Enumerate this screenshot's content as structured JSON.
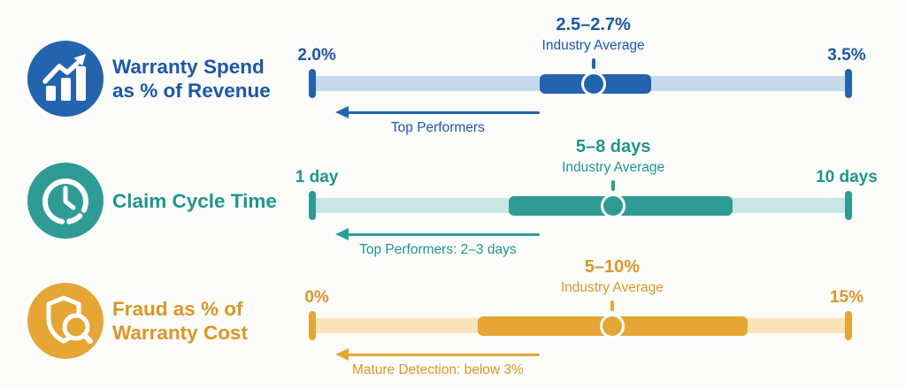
{
  "page": {
    "background": "#FCFCFA"
  },
  "rows": [
    {
      "id": "warranty-spend",
      "title_line1": "Warranty Spend",
      "title_line2": "as % of Revenue",
      "icon": "bar-chart-trend-icon",
      "min_label": "2.0%",
      "max_label": "3.5%",
      "avg_value": "2.5–2.7%",
      "avg_caption": "Industry Average",
      "note": "Top Performers",
      "colors": {
        "dark": "#2463AE",
        "light": "#C8D9EC",
        "text": "#1C57A8"
      },
      "geometry": {
        "seg_start_pct": 42.4,
        "seg_end_pct": 63.2,
        "marker_pct": 52.4
      }
    },
    {
      "id": "claim-cycle-time",
      "title_line1": "Claim Cycle Time",
      "icon": "clock-icon",
      "min_label": "1 day",
      "max_label": "10 days",
      "avg_value": "5–8 days",
      "avg_caption": "Industry Average",
      "note": "Top Performers: 2–3 days",
      "colors": {
        "dark": "#2E9C95",
        "light": "#C9E6E3",
        "text": "#1F968E"
      },
      "geometry": {
        "seg_start_pct": 36.7,
        "seg_end_pct": 78.3,
        "marker_pct": 56.1
      }
    },
    {
      "id": "fraud-cost",
      "title_line1": "Fraud as % of",
      "title_line2": "Warranty Cost",
      "icon": "shield-search-icon",
      "min_label": "0%",
      "max_label": "15%",
      "avg_value": "5–10%",
      "avg_caption": "Industry Average",
      "note": "Mature Detection: below 3%",
      "colors": {
        "dark": "#E5A636",
        "light": "#F9E4BB",
        "text": "#DB9628"
      },
      "geometry": {
        "seg_start_pct": 30.9,
        "seg_end_pct": 81.1,
        "marker_pct": 55.9
      }
    }
  ],
  "chart_data": {
    "type": "range-bar",
    "legend_position": "none",
    "metrics": [
      {
        "label": "Warranty Spend as % of Revenue",
        "unit": "percent of revenue",
        "scale": {
          "min": 2.0,
          "max": 3.5,
          "min_label": "2.0%",
          "max_label": "3.5%"
        },
        "industry_average": {
          "low": 2.5,
          "high": 2.7,
          "label": "2.5–2.7%",
          "caption": "Industry Average"
        },
        "benchmark": {
          "text": "Top Performers",
          "arrow_direction": "left"
        }
      },
      {
        "label": "Claim Cycle Time",
        "unit": "days",
        "scale": {
          "min": 1,
          "max": 10,
          "min_label": "1 day",
          "max_label": "10 days"
        },
        "industry_average": {
          "low": 5,
          "high": 8,
          "label": "5–8 days",
          "caption": "Industry Average"
        },
        "benchmark": {
          "text": "Top Performers: 2–3 days",
          "arrow_direction": "left"
        }
      },
      {
        "label": "Fraud as % of Warranty Cost",
        "unit": "percent of warranty cost",
        "scale": {
          "min": 0,
          "max": 15,
          "min_label": "0%",
          "max_label": "15%"
        },
        "industry_average": {
          "low": 5,
          "high": 10,
          "label": "5–10%",
          "caption": "Industry Average"
        },
        "benchmark": {
          "text": "Mature Detection: below 3%",
          "arrow_direction": "left"
        }
      }
    ]
  }
}
